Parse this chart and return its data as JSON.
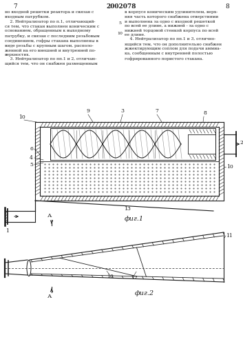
{
  "title": "2002078",
  "page_left": "7",
  "page_right": "8",
  "text_left": "но входной решетки реактора и связан с\nвходным патрубком.\n    2. Нейтрализатор по п.1, отличающий-\nся тем, что стакан выполнен коническим с\nоснованием, обращенным к выходному\nпатрубку, и связан с последним резьбовым\nсоединением, гофры стакана выполнены в\nвиде резьбы с крупным шагом, располо-\nженной на его внешней и внутренней по-\nверхностях.\n    3. Нейтрализатор по пп.1 и 2, отличаю-\nщийся тем, что он снабжен размещенным",
  "text_right": "в корпусе коническим удлинителем, верх-\nняя часть которого снабжена отверстиями\nи выполнена за одно с входной решеткой\nпо всей ее длине, а нижней - за одно с\nнижней торцовой стенкой корпуса по всей\nее длине.\n    4. Нейтрализатор по пп.1 и 3, отлично-\nящийся тем, что он дополнительно снабжен\nжжектирующим соплом для подачи аммиа-\nка, сообщенным с внутренней полостью\nгофрированного пористого стакана.",
  "fig1_label": "фиг.1",
  "fig2_label": "фиг.2",
  "bg_color": "#ffffff",
  "line_color": "#1a1a1a",
  "label_5": "5",
  "label_10_margin": "10"
}
